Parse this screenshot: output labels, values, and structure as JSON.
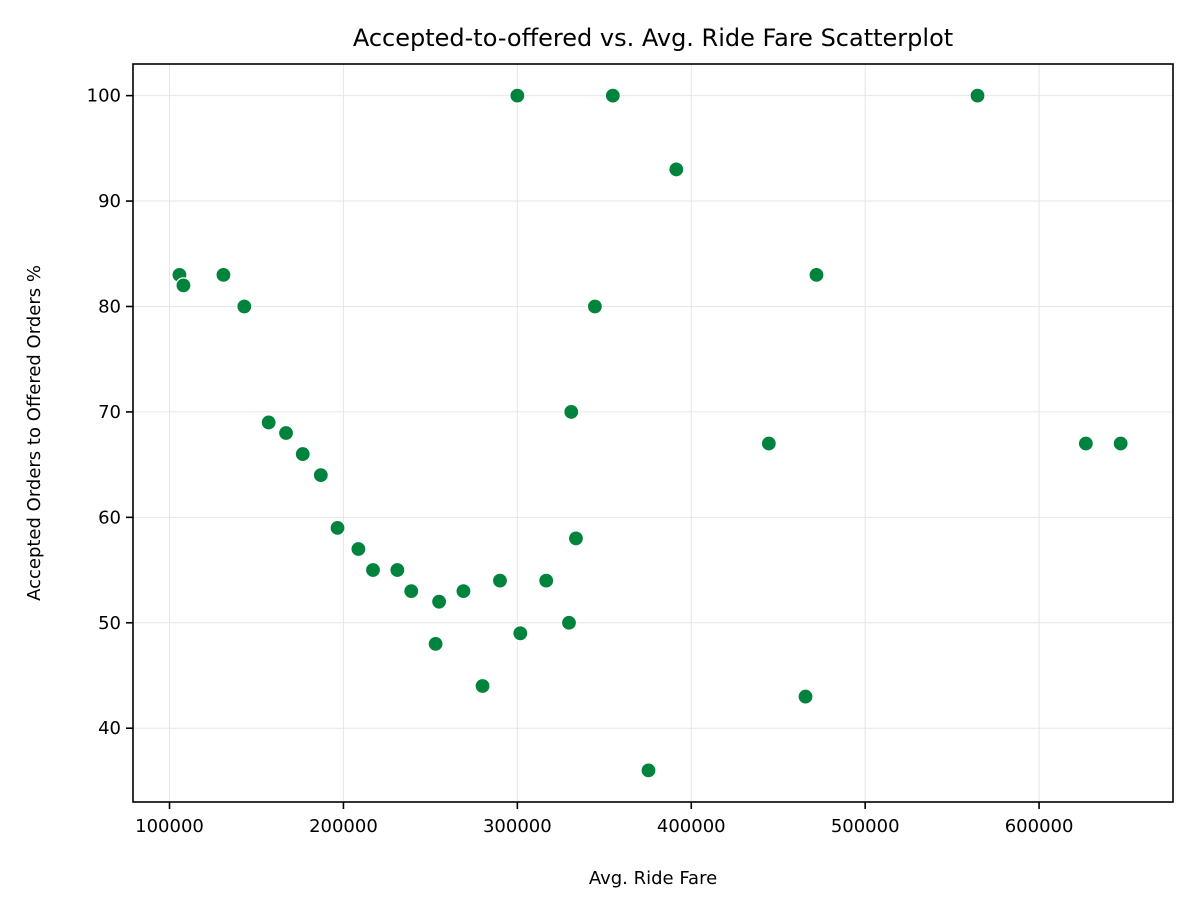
{
  "chart_data": {
    "type": "scatter",
    "title": "Accepted-to-offered vs. Avg. Ride Fare Scatterplot",
    "xlabel": "Avg. Ride Fare",
    "ylabel": "Accepted Orders to Offered Orders %",
    "xlim": [
      79000,
      677000
    ],
    "ylim": [
      33,
      103
    ],
    "xticks": [
      100000,
      200000,
      300000,
      400000,
      500000,
      600000
    ],
    "xtick_labels": [
      "100000",
      "200000",
      "300000",
      "400000",
      "500000",
      "600000"
    ],
    "yticks": [
      40,
      50,
      60,
      70,
      80,
      90,
      100
    ],
    "ytick_labels": [
      "40",
      "50",
      "60",
      "70",
      "80",
      "90",
      "100"
    ],
    "grid": true,
    "legend": null,
    "marker_color": "#00843d",
    "points": [
      {
        "x": 105700,
        "y": 83
      },
      {
        "x": 108000,
        "y": 82
      },
      {
        "x": 131000,
        "y": 83
      },
      {
        "x": 143000,
        "y": 80
      },
      {
        "x": 157000,
        "y": 69
      },
      {
        "x": 167000,
        "y": 68
      },
      {
        "x": 176600,
        "y": 66
      },
      {
        "x": 187000,
        "y": 64
      },
      {
        "x": 196600,
        "y": 59
      },
      {
        "x": 208600,
        "y": 57
      },
      {
        "x": 217000,
        "y": 55
      },
      {
        "x": 231000,
        "y": 55
      },
      {
        "x": 239000,
        "y": 53
      },
      {
        "x": 253000,
        "y": 48
      },
      {
        "x": 255000,
        "y": 52
      },
      {
        "x": 269000,
        "y": 53
      },
      {
        "x": 280000,
        "y": 44
      },
      {
        "x": 290000,
        "y": 54
      },
      {
        "x": 300000,
        "y": 100
      },
      {
        "x": 301700,
        "y": 49
      },
      {
        "x": 316600,
        "y": 54
      },
      {
        "x": 329700,
        "y": 50
      },
      {
        "x": 331000,
        "y": 70
      },
      {
        "x": 333700,
        "y": 58
      },
      {
        "x": 344600,
        "y": 80
      },
      {
        "x": 354900,
        "y": 100
      },
      {
        "x": 375400,
        "y": 36
      },
      {
        "x": 391400,
        "y": 93
      },
      {
        "x": 444600,
        "y": 67
      },
      {
        "x": 465700,
        "y": 43
      },
      {
        "x": 472000,
        "y": 83
      },
      {
        "x": 564600,
        "y": 100
      },
      {
        "x": 626900,
        "y": 67
      },
      {
        "x": 646900,
        "y": 67
      }
    ]
  }
}
